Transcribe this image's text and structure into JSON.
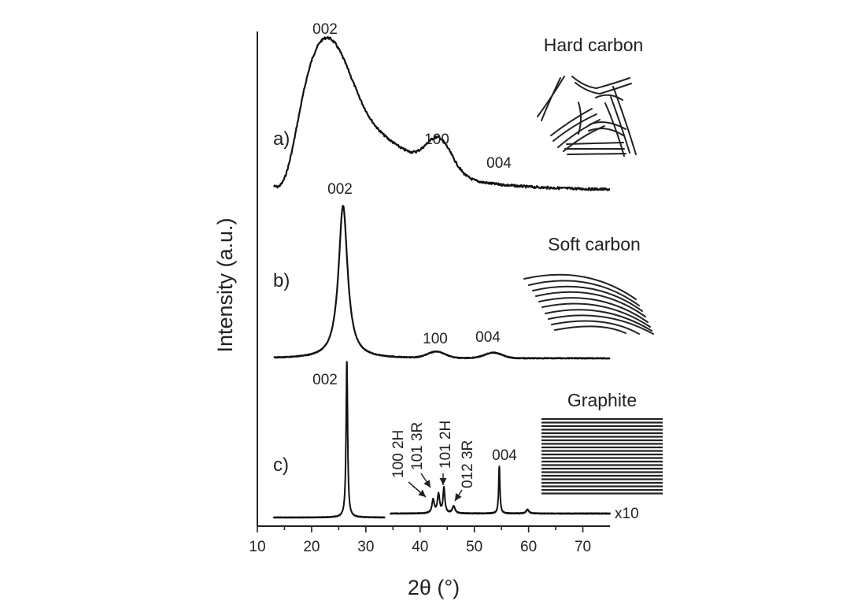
{
  "chart_data": {
    "type": "line",
    "xlabel": "2θ (°)",
    "ylabel": "Intensity (a.u.)",
    "xlim": [
      10,
      75
    ],
    "xticks": [
      10,
      20,
      30,
      40,
      50,
      60,
      70
    ],
    "xtick_labels": [
      "10",
      "20",
      "30",
      "40",
      "50",
      "60",
      "70"
    ],
    "panels": [
      {
        "tag": "a)",
        "material": "Hard carbon",
        "x_range": [
          13,
          75
        ],
        "peaks": [
          {
            "label": "002",
            "x": 22.5
          },
          {
            "label": "100",
            "x": 43.5
          },
          {
            "label": "004",
            "x": 53
          }
        ]
      },
      {
        "tag": "b)",
        "material": "Soft carbon",
        "x_range": [
          13,
          75
        ],
        "peaks": [
          {
            "label": "002",
            "x": 25.8
          },
          {
            "label": "100",
            "x": 43
          },
          {
            "label": "004",
            "x": 53.5
          }
        ]
      },
      {
        "tag": "c)",
        "material": "Graphite",
        "x_range": [
          13,
          75
        ],
        "break_at": 34.5,
        "scale_note": "x10",
        "peaks": [
          {
            "label": "002",
            "x": 26.5
          },
          {
            "label": "100 2H",
            "x": 42.4
          },
          {
            "label": "101 3R",
            "x": 43.4
          },
          {
            "label": "101 2H",
            "x": 44.4
          },
          {
            "label": "012 3R",
            "x": 46.2
          },
          {
            "label": "004",
            "x": 54.6
          }
        ]
      }
    ]
  }
}
